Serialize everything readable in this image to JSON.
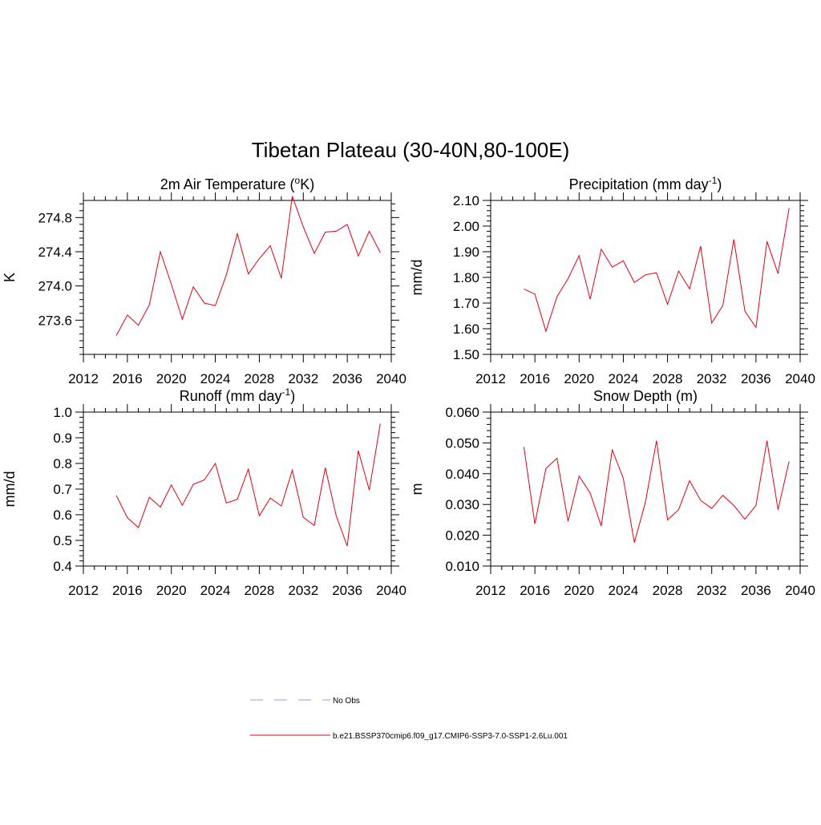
{
  "figure": {
    "title": "Tibetan Plateau (30-40N,80-100E)"
  },
  "legend": {
    "items": [
      {
        "label": "No Obs",
        "style": "dashed",
        "color": "#9999dd"
      },
      {
        "label": "b.e21.BSSP370cmip6.f09_g17.CMIP6-SSP3-7.0-SSP1-2.6Lu.001",
        "style": "solid",
        "color": "#e3000f"
      }
    ]
  },
  "colors": {
    "series": "#e3000f",
    "frame": "#000000"
  },
  "chart_data": [
    {
      "type": "line",
      "title_main": "2m Air Temperature (",
      "title_sup": "o",
      "title_tail": "K)",
      "ylabel": "K",
      "xlim": [
        2012,
        2040
      ],
      "ylim": [
        273.2,
        275.0
      ],
      "x_ticks": [
        2012,
        2016,
        2020,
        2024,
        2028,
        2032,
        2036,
        2040
      ],
      "y_ticks": [
        273.6,
        274.0,
        274.4,
        274.8
      ],
      "y_tick_labels": [
        "273.6",
        "274.0",
        "274.4",
        "274.8"
      ],
      "x": [
        2015,
        2016,
        2017,
        2018,
        2019,
        2020,
        2021,
        2022,
        2023,
        2024,
        2025,
        2026,
        2027,
        2028,
        2029,
        2030,
        2031,
        2032,
        2033,
        2034,
        2035,
        2036,
        2037,
        2038,
        2039
      ],
      "values": [
        273.42,
        273.66,
        273.54,
        273.78,
        274.4,
        274.02,
        273.61,
        273.99,
        273.8,
        273.77,
        274.13,
        274.61,
        274.14,
        274.32,
        274.47,
        274.09,
        275.05,
        274.69,
        274.38,
        274.63,
        274.64,
        274.72,
        274.35,
        274.64,
        274.39
      ]
    },
    {
      "type": "line",
      "title_main": "Precipitation (mm day",
      "title_sup": "-1",
      "title_tail": ")",
      "ylabel": "mm/d",
      "xlim": [
        2012,
        2040
      ],
      "ylim": [
        1.5,
        2.1
      ],
      "x_ticks": [
        2012,
        2016,
        2020,
        2024,
        2028,
        2032,
        2036,
        2040
      ],
      "y_ticks": [
        1.5,
        1.6,
        1.7,
        1.8,
        1.9,
        2.0,
        2.1
      ],
      "y_tick_labels": [
        "1.50",
        "1.60",
        "1.70",
        "1.80",
        "1.90",
        "2.00",
        "2.10"
      ],
      "x": [
        2015,
        2016,
        2017,
        2018,
        2019,
        2020,
        2021,
        2022,
        2023,
        2024,
        2025,
        2026,
        2027,
        2028,
        2029,
        2030,
        2031,
        2032,
        2033,
        2034,
        2035,
        2036,
        2037,
        2038,
        2039
      ],
      "values": [
        1.755,
        1.735,
        1.59,
        1.725,
        1.795,
        1.885,
        1.715,
        1.91,
        1.84,
        1.865,
        1.78,
        1.81,
        1.818,
        1.695,
        1.825,
        1.755,
        1.922,
        1.622,
        1.69,
        1.948,
        1.668,
        1.605,
        1.94,
        1.815,
        2.07
      ]
    },
    {
      "type": "line",
      "title_main": "Runoff (mm day",
      "title_sup": "-1",
      "title_tail": ")",
      "ylabel": "mm/d",
      "xlim": [
        2012,
        2040
      ],
      "ylim": [
        0.4,
        1.0
      ],
      "x_ticks": [
        2012,
        2016,
        2020,
        2024,
        2028,
        2032,
        2036,
        2040
      ],
      "y_ticks": [
        0.4,
        0.5,
        0.6,
        0.7,
        0.8,
        0.9,
        1.0
      ],
      "y_tick_labels": [
        "0.4",
        "0.5",
        "0.6",
        "0.7",
        "0.8",
        "0.9",
        "1.0"
      ],
      "x": [
        2015,
        2016,
        2017,
        2018,
        2019,
        2020,
        2021,
        2022,
        2023,
        2024,
        2025,
        2026,
        2027,
        2028,
        2029,
        2030,
        2031,
        2032,
        2033,
        2034,
        2035,
        2036,
        2037,
        2038,
        2039
      ],
      "values": [
        0.675,
        0.588,
        0.55,
        0.668,
        0.63,
        0.716,
        0.637,
        0.718,
        0.736,
        0.8,
        0.646,
        0.66,
        0.778,
        0.596,
        0.665,
        0.634,
        0.773,
        0.59,
        0.558,
        0.783,
        0.595,
        0.478,
        0.85,
        0.696,
        0.955
      ]
    },
    {
      "type": "line",
      "title_main": "Snow Depth (m)",
      "title_sup": "",
      "title_tail": "",
      "ylabel": "m",
      "xlim": [
        2012,
        2040
      ],
      "ylim": [
        0.01,
        0.06
      ],
      "x_ticks": [
        2012,
        2016,
        2020,
        2024,
        2028,
        2032,
        2036,
        2040
      ],
      "y_ticks": [
        0.01,
        0.02,
        0.03,
        0.04,
        0.05,
        0.06
      ],
      "y_tick_labels": [
        "0.010",
        "0.020",
        "0.030",
        "0.040",
        "0.050",
        "0.060"
      ],
      "x": [
        2015,
        2016,
        2017,
        2018,
        2019,
        2020,
        2021,
        2022,
        2023,
        2024,
        2025,
        2026,
        2027,
        2028,
        2029,
        2030,
        2031,
        2032,
        2033,
        2034,
        2035,
        2036,
        2037,
        2038,
        2039
      ],
      "values": [
        0.0487,
        0.0237,
        0.0417,
        0.045,
        0.0245,
        0.0392,
        0.0337,
        0.023,
        0.0477,
        0.0385,
        0.0176,
        0.0307,
        0.0507,
        0.025,
        0.0283,
        0.0377,
        0.0313,
        0.0287,
        0.033,
        0.0297,
        0.0252,
        0.0297,
        0.0507,
        0.0283,
        0.044
      ]
    }
  ]
}
